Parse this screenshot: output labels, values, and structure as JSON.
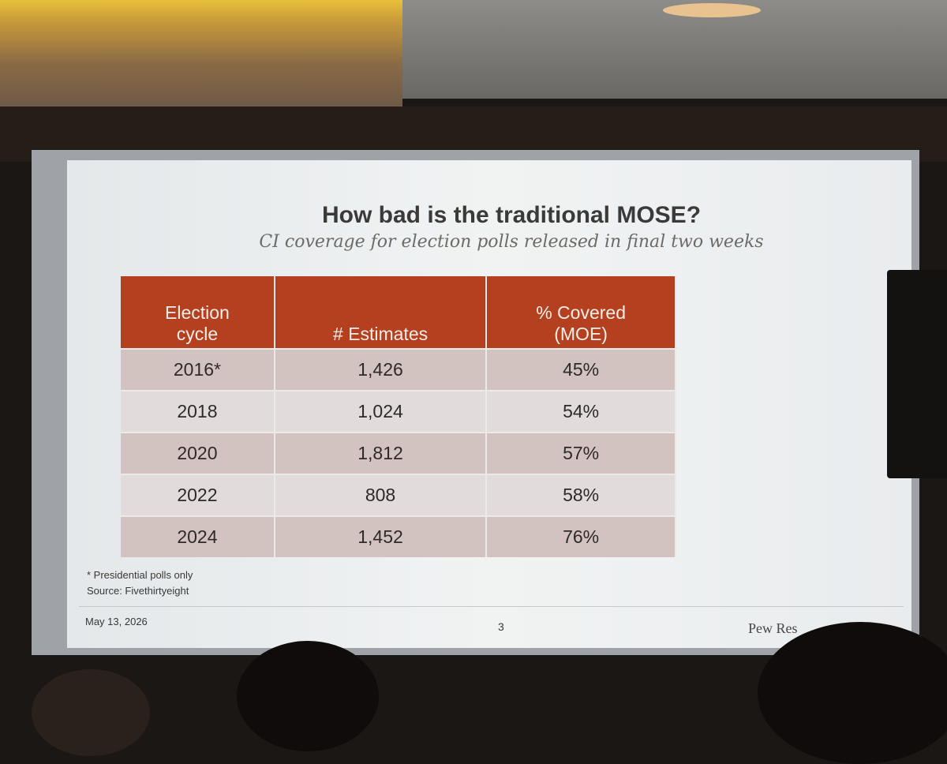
{
  "header": {
    "title": "How bad is the traditional MOSE?",
    "subtitle": "CI coverage for election polls released in final two weeks"
  },
  "table": {
    "columns": [
      "Election cycle",
      "# Estimates",
      "% Covered (MOE)"
    ],
    "rows": [
      [
        "2016*",
        "1,426",
        "45%"
      ],
      [
        "2018",
        "1,024",
        "54%"
      ],
      [
        "2020",
        "1,812",
        "57%"
      ],
      [
        "2022",
        "808",
        "58%"
      ],
      [
        "2024",
        "1,452",
        "76%"
      ]
    ]
  },
  "notes": [
    "* Presidential polls only",
    "Source: Fivethirtyeight"
  ],
  "footer": {
    "date": "May 13, 2026",
    "page": "3",
    "logo": "Pew Res"
  }
}
